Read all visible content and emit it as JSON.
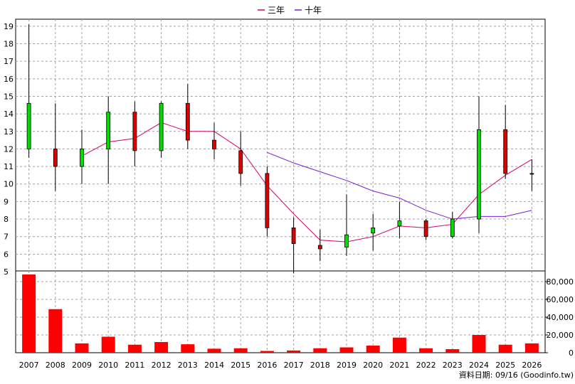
{
  "chart_data": {
    "type": "candlestick+volume",
    "years": [
      "2007",
      "2008",
      "2009",
      "2010",
      "2011",
      "2012",
      "2013",
      "2014",
      "2015",
      "2016",
      "2017",
      "2018",
      "2019",
      "2020",
      "2021",
      "2022",
      "2023",
      "2024",
      "2025",
      "2026"
    ],
    "legend": [
      {
        "name": "三年",
        "color": "#d6006b"
      },
      {
        "name": "十年",
        "color": "#7a1fd0"
      }
    ],
    "price_axis": {
      "ylim": [
        5,
        19.4
      ],
      "ticks": [
        5,
        6,
        7,
        8,
        9,
        10,
        11,
        12,
        13,
        14,
        15,
        16,
        17,
        18,
        19
      ]
    },
    "volume_axis": {
      "ylim": [
        0,
        92000
      ],
      "ticks": [
        0,
        20000,
        40000,
        60000,
        80000
      ],
      "tick_labels": [
        "0",
        "20,000",
        "40,000",
        "60,000",
        "80,000"
      ]
    },
    "candles": [
      {
        "year": "2007",
        "open": 12.0,
        "close": 14.6,
        "high": 19.1,
        "low": 11.5
      },
      {
        "year": "2008",
        "open": 12.0,
        "close": 11.0,
        "high": 14.6,
        "low": 9.6
      },
      {
        "year": "2009",
        "open": 11.0,
        "close": 12.0,
        "high": 13.1,
        "low": 10.0
      },
      {
        "year": "2010",
        "open": 12.0,
        "close": 14.1,
        "high": 15.0,
        "low": 10.0
      },
      {
        "year": "2011",
        "open": 14.1,
        "close": 11.9,
        "high": 14.7,
        "low": 11.0
      },
      {
        "year": "2012",
        "open": 11.9,
        "close": 14.6,
        "high": 14.7,
        "low": 11.5
      },
      {
        "year": "2013",
        "open": 14.6,
        "close": 12.5,
        "high": 15.7,
        "low": 12.0
      },
      {
        "year": "2014",
        "open": 12.5,
        "close": 12.0,
        "high": 13.5,
        "low": 11.4
      },
      {
        "year": "2015",
        "open": 11.9,
        "close": 10.6,
        "high": 13.0,
        "low": 9.9
      },
      {
        "year": "2016",
        "open": 10.6,
        "close": 7.5,
        "high": 11.0,
        "low": 7.0
      },
      {
        "year": "2017",
        "open": 7.5,
        "close": 6.6,
        "high": 8.1,
        "low": 4.9
      },
      {
        "year": "2018",
        "open": 6.5,
        "close": 6.3,
        "high": 7.4,
        "low": 5.6
      },
      {
        "year": "2019",
        "open": 6.4,
        "close": 7.1,
        "high": 9.4,
        "low": 5.9
      },
      {
        "year": "2020",
        "open": 7.2,
        "close": 7.5,
        "high": 8.3,
        "low": 6.2
      },
      {
        "year": "2021",
        "open": 7.6,
        "close": 7.9,
        "high": 9.0,
        "low": 6.9
      },
      {
        "year": "2022",
        "open": 7.9,
        "close": 7.0,
        "high": 8.0,
        "low": 6.8
      },
      {
        "year": "2023",
        "open": 7.0,
        "close": 8.0,
        "high": 8.4,
        "low": 6.9
      },
      {
        "year": "2024",
        "open": 8.0,
        "close": 13.1,
        "high": 15.0,
        "low": 7.2
      },
      {
        "year": "2025",
        "open": 13.1,
        "close": 10.6,
        "high": 14.5,
        "low": 10.3
      },
      {
        "year": "2026",
        "open": 10.6,
        "close": 10.6,
        "high": 11.4,
        "low": 9.6
      }
    ],
    "series": [
      {
        "name": "三年",
        "x": [
          "2009",
          "2010",
          "2011",
          "2012",
          "2013",
          "2014",
          "2015",
          "2016",
          "2017",
          "2018",
          "2019",
          "2020",
          "2021",
          "2022",
          "2023",
          "2024",
          "2025",
          "2026"
        ],
        "values": [
          11.6,
          12.4,
          12.6,
          13.5,
          13.0,
          13.0,
          12.0,
          9.9,
          8.3,
          6.8,
          6.7,
          7.0,
          7.6,
          7.5,
          7.7,
          9.4,
          10.5,
          11.4
        ]
      },
      {
        "name": "十年",
        "x": [
          "2016",
          "2017",
          "2018",
          "2019",
          "2020",
          "2021",
          "2022",
          "2023",
          "2024",
          "2025",
          "2026"
        ],
        "values": [
          11.8,
          11.2,
          10.7,
          10.2,
          9.6,
          9.2,
          8.5,
          8.0,
          8.15,
          8.15,
          8.5
        ]
      }
    ],
    "volume": [
      88000,
      49000,
      10500,
      18000,
      9000,
      12000,
      9500,
      4500,
      5000,
      2000,
      2500,
      5000,
      6000,
      8000,
      17000,
      5000,
      4000,
      20000,
      9000,
      10500
    ],
    "grid": true
  },
  "footer": {
    "text": "資料日期: 09/16 (Goodinfo.tw)"
  }
}
